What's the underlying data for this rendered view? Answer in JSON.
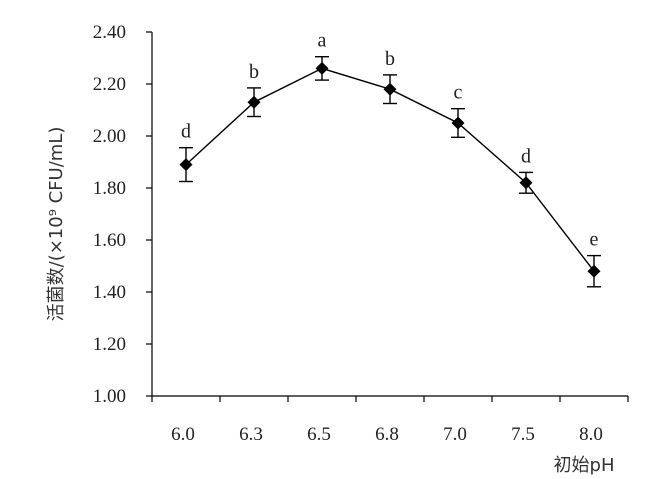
{
  "chart_data": {
    "type": "line",
    "title": "",
    "xlabel": "初始pH",
    "ylabel": "活菌数/(×10⁹ CFU/mL)",
    "ylim": [
      1.0,
      2.4
    ],
    "yticks": [
      "1.00",
      "1.20",
      "1.40",
      "1.60",
      "1.80",
      "2.00",
      "2.20",
      "2.40"
    ],
    "categories": [
      "6.0",
      "6.3",
      "6.5",
      "6.8",
      "7.0",
      "7.5",
      "8.0"
    ],
    "series": [
      {
        "values": [
          1.89,
          2.13,
          2.26,
          2.18,
          2.05,
          1.82,
          1.48
        ],
        "errors": [
          0.065,
          0.055,
          0.045,
          0.055,
          0.055,
          0.04,
          0.06
        ],
        "significance": [
          "d",
          "b",
          "a",
          "b",
          "c",
          "d",
          "e"
        ]
      }
    ],
    "grid": false,
    "marker": "diamond",
    "color": "#000000"
  }
}
